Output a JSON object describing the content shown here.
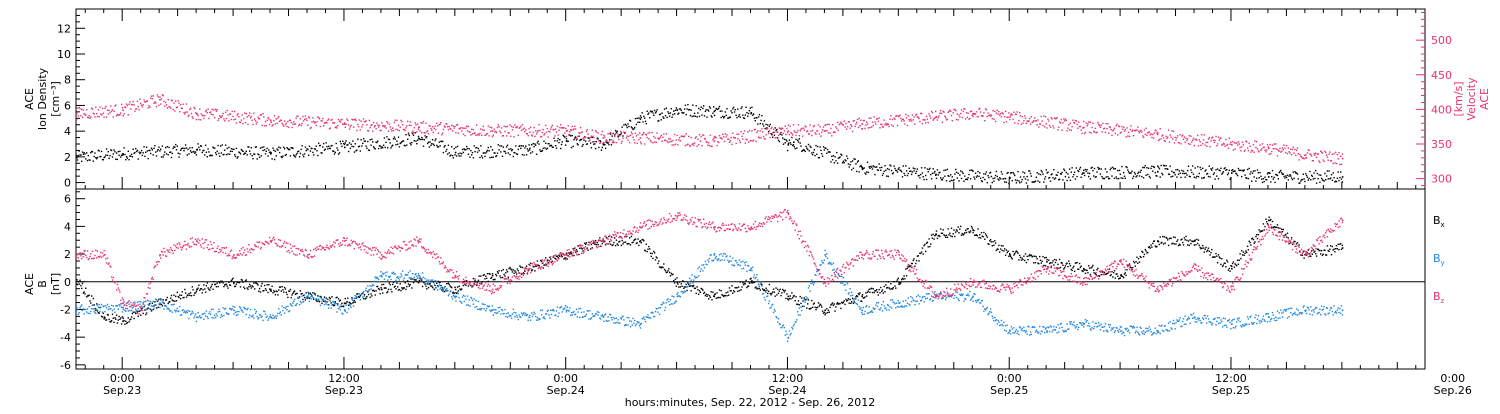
{
  "chart_data": [
    {
      "type": "scatter",
      "panel": "top",
      "left_axis_label": [
        "ACE",
        "Ion Density",
        "[cm⁻³]"
      ],
      "right_axis_label": [
        "ACE",
        "Velocity",
        "[km/s]"
      ],
      "ylim": [
        -0.5,
        13.5
      ],
      "yticks": [
        0,
        2,
        4,
        6,
        8,
        10,
        12
      ],
      "ylim_right": [
        285,
        545
      ],
      "yticks_right": [
        300,
        350,
        400,
        450,
        500
      ],
      "grid": false,
      "series": [
        {
          "name": "Ion Density",
          "axis": "left",
          "color": "#000000",
          "x": [
            -2.5,
            0,
            4,
            8,
            12,
            16,
            18,
            22,
            24,
            26,
            28,
            30,
            32,
            34,
            36,
            36.3,
            40,
            44,
            48,
            52,
            56,
            60,
            62,
            66
          ],
          "values": [
            2.0,
            2.3,
            2.6,
            2.3,
            2.8,
            3.5,
            2.4,
            2.6,
            3.3,
            3.0,
            5.0,
            5.7,
            5.6,
            5.5,
            3.0,
            3.2,
            1.2,
            0.7,
            0.4,
            0.8,
            0.9,
            0.8,
            0.5,
            0.5
          ]
        },
        {
          "name": "Velocity",
          "axis": "right",
          "color": "#e8336b",
          "x": [
            -2.5,
            0,
            2,
            4,
            8,
            12,
            16,
            20,
            24,
            26,
            28,
            32,
            36,
            38,
            40,
            44,
            46,
            48,
            52,
            56,
            60,
            62,
            64,
            66
          ],
          "values": [
            395,
            400,
            415,
            395,
            385,
            380,
            375,
            370,
            370,
            360,
            360,
            355,
            370,
            370,
            380,
            390,
            395,
            390,
            375,
            365,
            350,
            345,
            335,
            330
          ]
        }
      ]
    },
    {
      "type": "scatter",
      "panel": "bottom",
      "left_axis_label": [
        "ACE",
        "B",
        "[nT]"
      ],
      "ylim": [
        -6.3,
        6.7
      ],
      "yticks": [
        -6,
        -4,
        -2,
        0,
        2,
        4,
        6
      ],
      "reference_line": 0,
      "grid": false,
      "legend_position": "right",
      "series": [
        {
          "name": "Bx",
          "color": "#000000",
          "x": [
            -2.5,
            -1,
            0,
            2,
            4,
            6,
            8,
            10,
            12,
            14,
            16,
            18,
            20,
            22,
            24,
            26,
            28,
            30,
            32,
            34,
            36,
            38,
            40,
            42,
            44,
            46,
            48,
            50,
            52,
            54,
            56,
            58,
            60,
            62,
            64,
            66
          ],
          "values": [
            0.2,
            -2.5,
            -2.8,
            -1.5,
            -0.5,
            0,
            -0.5,
            -1,
            -1.5,
            -0.5,
            0,
            -0.5,
            0.5,
            1,
            2,
            3,
            3,
            0,
            -1,
            0,
            -1,
            -2,
            -1,
            0,
            3.5,
            3.8,
            2,
            1.5,
            1,
            0.5,
            3,
            3,
            1,
            4.5,
            2,
            2.5
          ]
        },
        {
          "name": "By",
          "color": "#1f87e0",
          "x": [
            -2.5,
            0,
            2,
            4,
            6,
            8,
            10,
            12,
            14,
            16,
            18,
            20,
            22,
            24,
            26,
            28,
            30,
            32,
            34,
            36,
            38,
            40,
            42,
            44,
            46,
            48,
            50,
            52,
            54,
            56,
            58,
            60,
            62,
            64,
            66
          ],
          "values": [
            -2,
            -1.8,
            -1.5,
            -2.5,
            -2,
            -2.5,
            -1,
            -2,
            0.5,
            0.5,
            -1,
            -2,
            -2.5,
            -2,
            -2.5,
            -3,
            -1,
            2,
            1,
            -4,
            2,
            -2,
            -1.5,
            -1,
            -1,
            -3.5,
            -3.5,
            -3,
            -3.5,
            -3.5,
            -2.5,
            -3,
            -2.5,
            -2,
            -2
          ]
        },
        {
          "name": "Bz",
          "color": "#e8336b",
          "x": [
            -2.5,
            -1,
            0,
            1,
            2,
            4,
            6,
            8,
            10,
            12,
            14,
            16,
            18,
            20,
            22,
            24,
            26,
            28,
            30,
            32,
            34,
            36,
            38,
            40,
            42,
            44,
            46,
            48,
            50,
            52,
            54,
            56,
            58,
            60,
            62,
            64,
            66
          ],
          "values": [
            2,
            2,
            -1.5,
            -2,
            2,
            3,
            2,
            3,
            2,
            3,
            2,
            3,
            0.5,
            -0.5,
            1,
            2,
            3,
            4,
            4.8,
            4,
            4,
            5,
            0,
            2,
            2,
            -1,
            0,
            -0.5,
            1,
            0,
            1.5,
            -0.5,
            1,
            -0.5,
            4,
            2,
            4.5
          ]
        }
      ]
    }
  ],
  "x_axis": {
    "xlim": [
      -2.5,
      70.5
    ],
    "ticks": [
      {
        "t": 0,
        "time": "0:00",
        "date": "Sep.23"
      },
      {
        "t": 12,
        "time": "12:00",
        "date": "Sep.23"
      },
      {
        "t": 24,
        "time": "0:00",
        "date": "Sep.24"
      },
      {
        "t": 36,
        "time": "12:00",
        "date": "Sep.24"
      },
      {
        "t": 48,
        "time": "0:00",
        "date": "Sep.25"
      },
      {
        "t": 60,
        "time": "12:00",
        "date": "Sep.25"
      },
      {
        "t": 72,
        "time": "0:00",
        "date": "Sep.26"
      }
    ],
    "label": "hours:minutes, Sep. 22, 2012 - Sep. 26, 2012"
  },
  "legend": [
    {
      "base": "B",
      "sub": "x",
      "color": "#000000"
    },
    {
      "base": "B",
      "sub": "y",
      "color": "#1f87e0"
    },
    {
      "base": "B",
      "sub": "z",
      "color": "#e8336b"
    }
  ]
}
